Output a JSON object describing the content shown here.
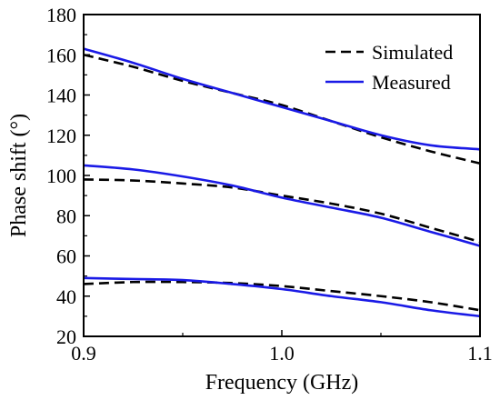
{
  "chart_data": {
    "type": "line",
    "xlabel": "Frequency (GHz)",
    "ylabel": "Phase shift (°)",
    "xlim": [
      0.9,
      1.1
    ],
    "ylim": [
      20,
      180
    ],
    "x_ticks": [
      0.9,
      1.0,
      1.1
    ],
    "y_ticks": [
      20,
      40,
      60,
      80,
      100,
      120,
      140,
      160,
      180
    ],
    "grid": false,
    "legend_position": "top-right",
    "legend": [
      {
        "label": "Simulated",
        "style": "dashed",
        "color": "#000000"
      },
      {
        "label": "Measured",
        "style": "solid",
        "color": "#1a1ae6"
      }
    ],
    "series": [
      {
        "name": "Simulated",
        "group": 1,
        "style": "dashed",
        "color": "#000000",
        "x": [
          0.9,
          0.925,
          0.95,
          0.975,
          1.0,
          1.025,
          1.05,
          1.075,
          1.1
        ],
        "y": [
          160,
          154,
          147,
          141,
          135,
          127,
          119,
          112,
          106
        ]
      },
      {
        "name": "Measured",
        "group": 1,
        "style": "solid",
        "color": "#1a1ae6",
        "x": [
          0.9,
          0.925,
          0.95,
          0.975,
          1.0,
          1.025,
          1.05,
          1.075,
          1.1
        ],
        "y": [
          163,
          156,
          148,
          141,
          134,
          127,
          120,
          115,
          113
        ]
      },
      {
        "name": "Simulated",
        "group": 2,
        "style": "dashed",
        "color": "#000000",
        "x": [
          0.9,
          0.925,
          0.95,
          0.975,
          1.0,
          1.025,
          1.05,
          1.075,
          1.1
        ],
        "y": [
          98,
          97.5,
          96,
          94,
          90,
          86,
          81,
          74,
          67
        ]
      },
      {
        "name": "Measured",
        "group": 2,
        "style": "solid",
        "color": "#1a1ae6",
        "x": [
          0.9,
          0.925,
          0.95,
          0.975,
          1.0,
          1.025,
          1.05,
          1.075,
          1.1
        ],
        "y": [
          105,
          103,
          99.5,
          95,
          89,
          84,
          79,
          72,
          65
        ]
      },
      {
        "name": "Simulated",
        "group": 3,
        "style": "dashed",
        "color": "#000000",
        "x": [
          0.9,
          0.925,
          0.95,
          0.975,
          1.0,
          1.025,
          1.05,
          1.075,
          1.1
        ],
        "y": [
          46,
          47,
          47,
          46.5,
          45,
          42.5,
          40,
          37,
          33
        ]
      },
      {
        "name": "Measured",
        "group": 3,
        "style": "solid",
        "color": "#1a1ae6",
        "x": [
          0.9,
          0.925,
          0.95,
          0.975,
          1.0,
          1.025,
          1.05,
          1.075,
          1.1
        ],
        "y": [
          49,
          48.5,
          48,
          46,
          43.5,
          40,
          37,
          33,
          30
        ]
      }
    ]
  }
}
